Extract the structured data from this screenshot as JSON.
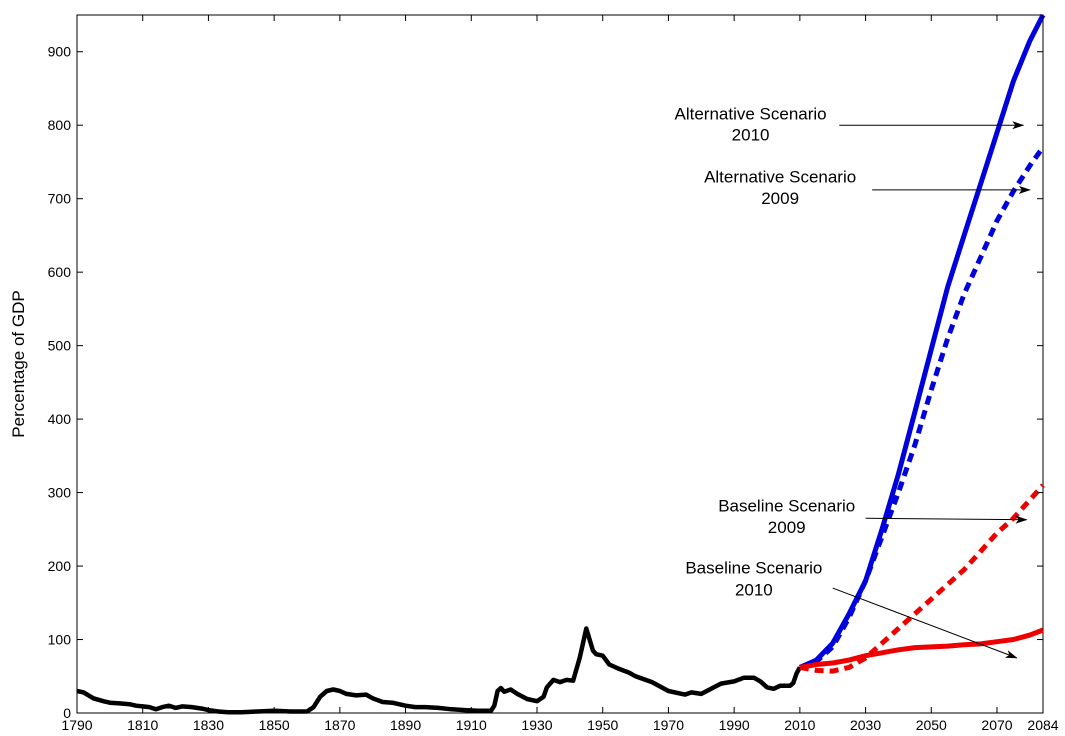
{
  "chart_data": {
    "type": "line",
    "title": "",
    "xlabel": "",
    "ylabel": "Percentage of GDP",
    "xlim": [
      1790,
      2084
    ],
    "ylim": [
      0,
      950
    ],
    "grid": false,
    "x_ticks": [
      1790,
      1810,
      1830,
      1850,
      1870,
      1890,
      1910,
      1930,
      1950,
      1970,
      1990,
      2010,
      2030,
      2050,
      2070,
      2084
    ],
    "y_ticks": [
      0,
      100,
      200,
      300,
      400,
      500,
      600,
      700,
      800,
      900
    ],
    "series": [
      {
        "color": "#000000",
        "style": "solid",
        "points": [
          [
            1790,
            30
          ],
          [
            1792,
            28
          ],
          [
            1795,
            20
          ],
          [
            1798,
            16
          ],
          [
            1800,
            14
          ],
          [
            1803,
            13
          ],
          [
            1806,
            12
          ],
          [
            1808,
            10
          ],
          [
            1810,
            9
          ],
          [
            1812,
            8
          ],
          [
            1814,
            5
          ],
          [
            1816,
            8
          ],
          [
            1818,
            10
          ],
          [
            1820,
            7
          ],
          [
            1822,
            9
          ],
          [
            1825,
            8
          ],
          [
            1828,
            6
          ],
          [
            1830,
            4
          ],
          [
            1833,
            2
          ],
          [
            1836,
            1
          ],
          [
            1840,
            1
          ],
          [
            1845,
            2
          ],
          [
            1850,
            3
          ],
          [
            1855,
            2
          ],
          [
            1860,
            2
          ],
          [
            1862,
            8
          ],
          [
            1864,
            22
          ],
          [
            1866,
            30
          ],
          [
            1868,
            32
          ],
          [
            1870,
            30
          ],
          [
            1872,
            26
          ],
          [
            1875,
            24
          ],
          [
            1878,
            25
          ],
          [
            1880,
            20
          ],
          [
            1883,
            15
          ],
          [
            1886,
            14
          ],
          [
            1890,
            10
          ],
          [
            1893,
            8
          ],
          [
            1896,
            8
          ],
          [
            1900,
            7
          ],
          [
            1904,
            5
          ],
          [
            1908,
            4
          ],
          [
            1912,
            3
          ],
          [
            1916,
            3
          ],
          [
            1917,
            10
          ],
          [
            1918,
            30
          ],
          [
            1919,
            34
          ],
          [
            1920,
            29
          ],
          [
            1922,
            32
          ],
          [
            1924,
            26
          ],
          [
            1927,
            19
          ],
          [
            1930,
            16
          ],
          [
            1932,
            22
          ],
          [
            1933,
            35
          ],
          [
            1935,
            45
          ],
          [
            1937,
            42
          ],
          [
            1939,
            45
          ],
          [
            1941,
            44
          ],
          [
            1943,
            75
          ],
          [
            1944,
            95
          ],
          [
            1945,
            115
          ],
          [
            1946,
            100
          ],
          [
            1947,
            85
          ],
          [
            1948,
            80
          ],
          [
            1950,
            78
          ],
          [
            1952,
            66
          ],
          [
            1955,
            60
          ],
          [
            1958,
            55
          ],
          [
            1960,
            50
          ],
          [
            1965,
            42
          ],
          [
            1970,
            30
          ],
          [
            1975,
            25
          ],
          [
            1977,
            28
          ],
          [
            1980,
            26
          ],
          [
            1983,
            33
          ],
          [
            1986,
            40
          ],
          [
            1990,
            43
          ],
          [
            1993,
            48
          ],
          [
            1996,
            48
          ],
          [
            1998,
            43
          ],
          [
            2000,
            35
          ],
          [
            2002,
            33
          ],
          [
            2004,
            37
          ],
          [
            2007,
            37
          ],
          [
            2008,
            41
          ],
          [
            2009,
            54
          ],
          [
            2010,
            62
          ]
        ]
      },
      {
        "color": "#0000dd",
        "style": "solid",
        "points": [
          [
            2010,
            62
          ],
          [
            2015,
            72
          ],
          [
            2020,
            95
          ],
          [
            2025,
            135
          ],
          [
            2030,
            180
          ],
          [
            2035,
            250
          ],
          [
            2040,
            325
          ],
          [
            2045,
            410
          ],
          [
            2050,
            495
          ],
          [
            2055,
            580
          ],
          [
            2060,
            650
          ],
          [
            2065,
            720
          ],
          [
            2070,
            790
          ],
          [
            2075,
            860
          ],
          [
            2080,
            915
          ],
          [
            2084,
            950
          ]
        ]
      },
      {
        "color": "#0000dd",
        "style": "dashed",
        "points": [
          [
            2010,
            62
          ],
          [
            2015,
            70
          ],
          [
            2020,
            90
          ],
          [
            2025,
            130
          ],
          [
            2030,
            180
          ],
          [
            2035,
            240
          ],
          [
            2040,
            300
          ],
          [
            2045,
            365
          ],
          [
            2050,
            440
          ],
          [
            2055,
            510
          ],
          [
            2060,
            570
          ],
          [
            2065,
            620
          ],
          [
            2070,
            670
          ],
          [
            2075,
            710
          ],
          [
            2080,
            745
          ],
          [
            2084,
            770
          ]
        ]
      },
      {
        "color": "#ee0000",
        "style": "dashed",
        "points": [
          [
            2010,
            62
          ],
          [
            2015,
            58
          ],
          [
            2020,
            57
          ],
          [
            2025,
            62
          ],
          [
            2030,
            75
          ],
          [
            2035,
            95
          ],
          [
            2040,
            115
          ],
          [
            2045,
            135
          ],
          [
            2050,
            155
          ],
          [
            2055,
            175
          ],
          [
            2060,
            195
          ],
          [
            2065,
            220
          ],
          [
            2070,
            245
          ],
          [
            2075,
            265
          ],
          [
            2080,
            290
          ],
          [
            2084,
            310
          ]
        ]
      },
      {
        "color": "#ee0000",
        "style": "solid",
        "points": [
          [
            2010,
            62
          ],
          [
            2015,
            66
          ],
          [
            2020,
            68
          ],
          [
            2025,
            72
          ],
          [
            2030,
            78
          ],
          [
            2035,
            82
          ],
          [
            2040,
            86
          ],
          [
            2045,
            89
          ],
          [
            2050,
            90
          ],
          [
            2055,
            91
          ],
          [
            2060,
            93
          ],
          [
            2065,
            94
          ],
          [
            2070,
            97
          ],
          [
            2075,
            100
          ],
          [
            2080,
            106
          ],
          [
            2084,
            113
          ]
        ]
      }
    ],
    "annotations": [
      {
        "lines": [
          "Alternative Scenario",
          "2010"
        ],
        "text_x": 1995,
        "text_y1": 808,
        "text_y2": 779,
        "arrow_from": [
          2022,
          800
        ],
        "arrow_to": [
          2078,
          800
        ]
      },
      {
        "lines": [
          "Alternative Scenario",
          "2009"
        ],
        "text_x": 2004,
        "text_y1": 722,
        "text_y2": 693,
        "arrow_from": [
          2032,
          712
        ],
        "arrow_to": [
          2080,
          712
        ]
      },
      {
        "lines": [
          "Baseline Scenario",
          "2009"
        ],
        "text_x": 2006,
        "text_y1": 274,
        "text_y2": 245,
        "arrow_from": [
          2030,
          265
        ],
        "arrow_to": [
          2079,
          263
        ]
      },
      {
        "lines": [
          "Baseline Scenario",
          "2010"
        ],
        "text_x": 1996,
        "text_y1": 190,
        "text_y2": 160,
        "arrow_from": [
          2020,
          170
        ],
        "arrow_to": [
          2076,
          75
        ]
      }
    ]
  }
}
